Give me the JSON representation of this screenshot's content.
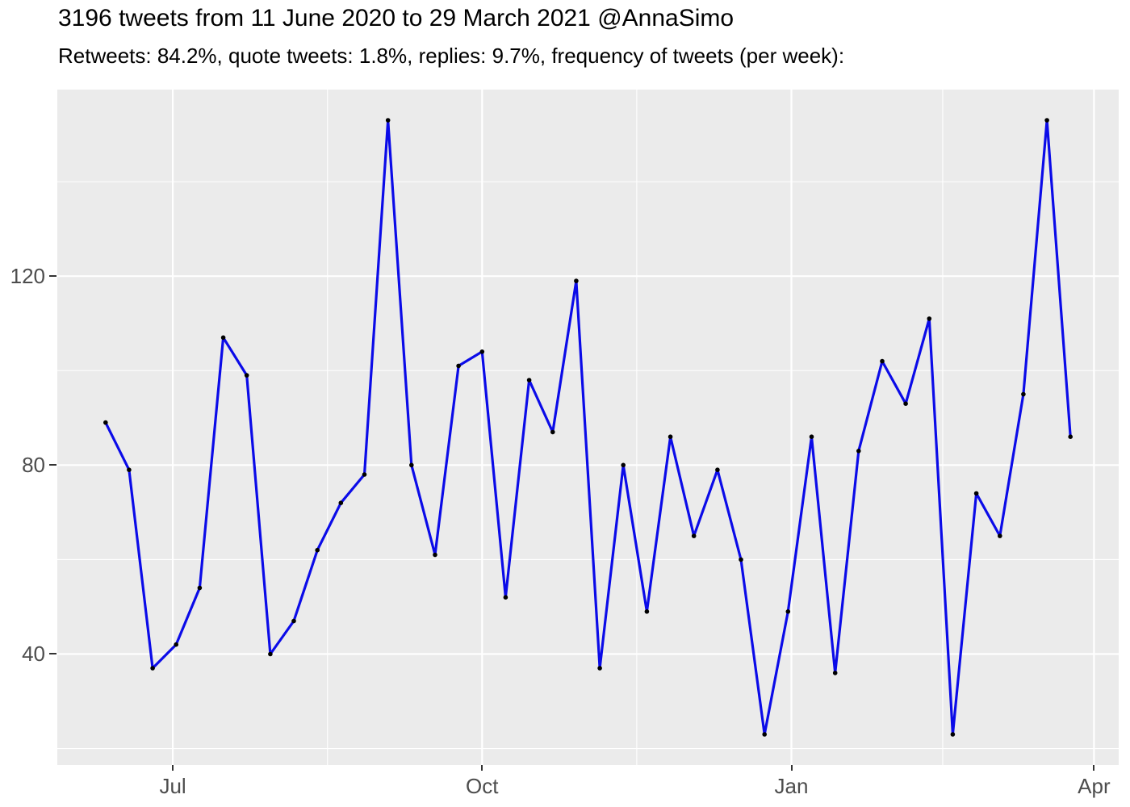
{
  "chart_data": {
    "type": "line",
    "title": "3196 tweets from 11 June 2020 to 29 March 2021 @AnnaSimo",
    "subtitle": "Retweets: 84.2%, quote tweets: 1.8%, replies: 9.7%, frequency of tweets (per week):",
    "x": [
      "2020-06-11",
      "2020-06-18",
      "2020-06-25",
      "2020-07-02",
      "2020-07-09",
      "2020-07-16",
      "2020-07-23",
      "2020-07-30",
      "2020-08-06",
      "2020-08-13",
      "2020-08-20",
      "2020-08-27",
      "2020-09-03",
      "2020-09-10",
      "2020-09-17",
      "2020-09-24",
      "2020-10-01",
      "2020-10-08",
      "2020-10-15",
      "2020-10-22",
      "2020-10-29",
      "2020-11-05",
      "2020-11-12",
      "2020-11-19",
      "2020-11-26",
      "2020-12-03",
      "2020-12-10",
      "2020-12-17",
      "2020-12-24",
      "2020-12-31",
      "2021-01-07",
      "2021-01-14",
      "2021-01-21",
      "2021-01-28",
      "2021-02-04",
      "2021-02-11",
      "2021-02-18",
      "2021-02-25",
      "2021-03-04",
      "2021-03-11",
      "2021-03-18",
      "2021-03-25"
    ],
    "values": [
      89,
      79,
      37,
      42,
      54,
      107,
      99,
      40,
      47,
      62,
      72,
      78,
      153,
      80,
      61,
      101,
      104,
      52,
      98,
      87,
      119,
      37,
      80,
      49,
      86,
      65,
      79,
      60,
      23,
      49,
      86,
      36,
      83,
      102,
      93,
      111,
      23,
      74,
      65,
      95,
      153,
      86
    ],
    "total_tweets": 3196,
    "xlabel": "",
    "ylabel": "",
    "x_ticks": [
      {
        "label": "Jul",
        "date": "2020-07-01"
      },
      {
        "label": "Oct",
        "date": "2020-10-01"
      },
      {
        "label": "Jan",
        "date": "2021-01-01"
      },
      {
        "label": "Apr",
        "date": "2021-04-01"
      }
    ],
    "y_ticks": [
      40,
      80,
      120
    ],
    "y_minor_ticks": [
      20,
      60,
      100,
      140
    ],
    "ylim": [
      16.5,
      159.5
    ],
    "x_expansion": 0.05,
    "grid": "on",
    "legend": "none",
    "colors": {
      "line": "#0B0BE8",
      "point": "#000000",
      "panel_bg": "#EBEBEB",
      "grid_major": "#FFFFFF",
      "grid_minor": "#FFFFFF",
      "axis_text": "#4D4D4D",
      "tick_mark": "#333333",
      "title_text": "#000000",
      "background": "#FFFFFF"
    }
  }
}
